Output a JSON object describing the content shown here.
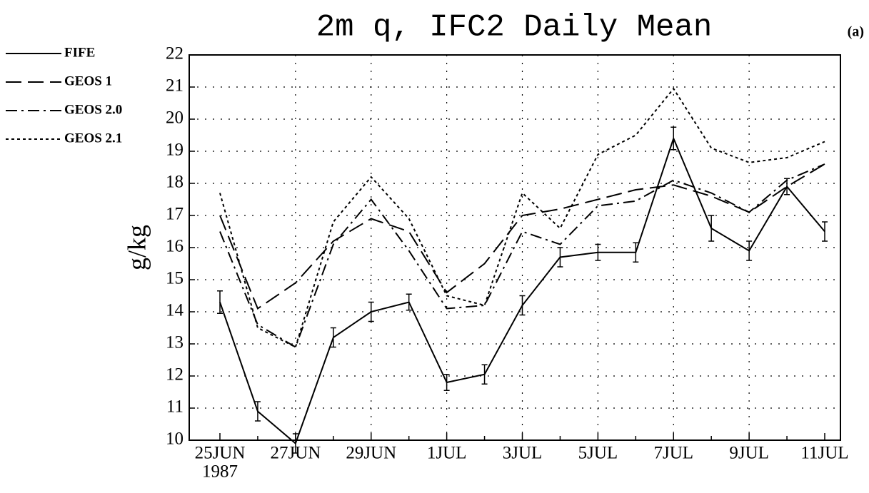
{
  "chart_data": {
    "type": "line",
    "title": "2m q, IFC2 Daily Mean",
    "panel_label": "(a)",
    "ylabel": "g/kg",
    "categories": [
      "25JUN",
      null,
      "27JUN",
      null,
      "29JUN",
      null,
      "1JUL",
      null,
      "3JUL",
      null,
      "5JUL",
      null,
      "7JUL",
      null,
      "9JUL",
      null,
      "11JUL"
    ],
    "year_label": "1987",
    "ylim": [
      10,
      22
    ],
    "yticks": [
      10,
      11,
      12,
      13,
      14,
      15,
      16,
      17,
      18,
      19,
      20,
      21,
      22
    ],
    "grid": true,
    "legend": "upper left",
    "series": [
      {
        "name": "FIFE",
        "color": "#000000",
        "line_style": "solid",
        "values": [
          14.3,
          10.9,
          9.9,
          13.2,
          14.0,
          14.3,
          11.8,
          12.05,
          14.2,
          15.7,
          15.85,
          15.85,
          19.4,
          16.6,
          15.9,
          17.9,
          16.5
        ],
        "errors": [
          0.35,
          0.3,
          0.3,
          0.3,
          0.3,
          0.25,
          0.25,
          0.3,
          0.3,
          0.3,
          0.25,
          0.3,
          0.35,
          0.4,
          0.3,
          0.25,
          0.3
        ]
      },
      {
        "name": "GEOS 1",
        "color": "#000000",
        "line_style": "long-dash",
        "values": [
          17.0,
          14.1,
          14.9,
          16.2,
          16.9,
          16.5,
          14.6,
          15.5,
          17.0,
          17.2,
          17.5,
          17.8,
          17.95,
          17.6,
          17.1,
          17.9,
          18.6
        ]
      },
      {
        "name": "GEOS 2.0",
        "color": "#000000",
        "line_style": "dash-dot",
        "values": [
          16.5,
          13.6,
          12.9,
          16.1,
          17.5,
          15.9,
          14.1,
          14.2,
          16.5,
          16.1,
          17.3,
          17.45,
          18.1,
          17.7,
          17.1,
          18.1,
          18.6
        ]
      },
      {
        "name": "GEOS 2.1",
        "color": "#000000",
        "line_style": "dotted",
        "values": [
          17.7,
          13.5,
          12.9,
          16.8,
          18.2,
          16.9,
          14.5,
          14.2,
          17.7,
          16.6,
          18.9,
          19.5,
          20.95,
          19.1,
          18.65,
          18.8,
          19.3
        ]
      }
    ]
  }
}
